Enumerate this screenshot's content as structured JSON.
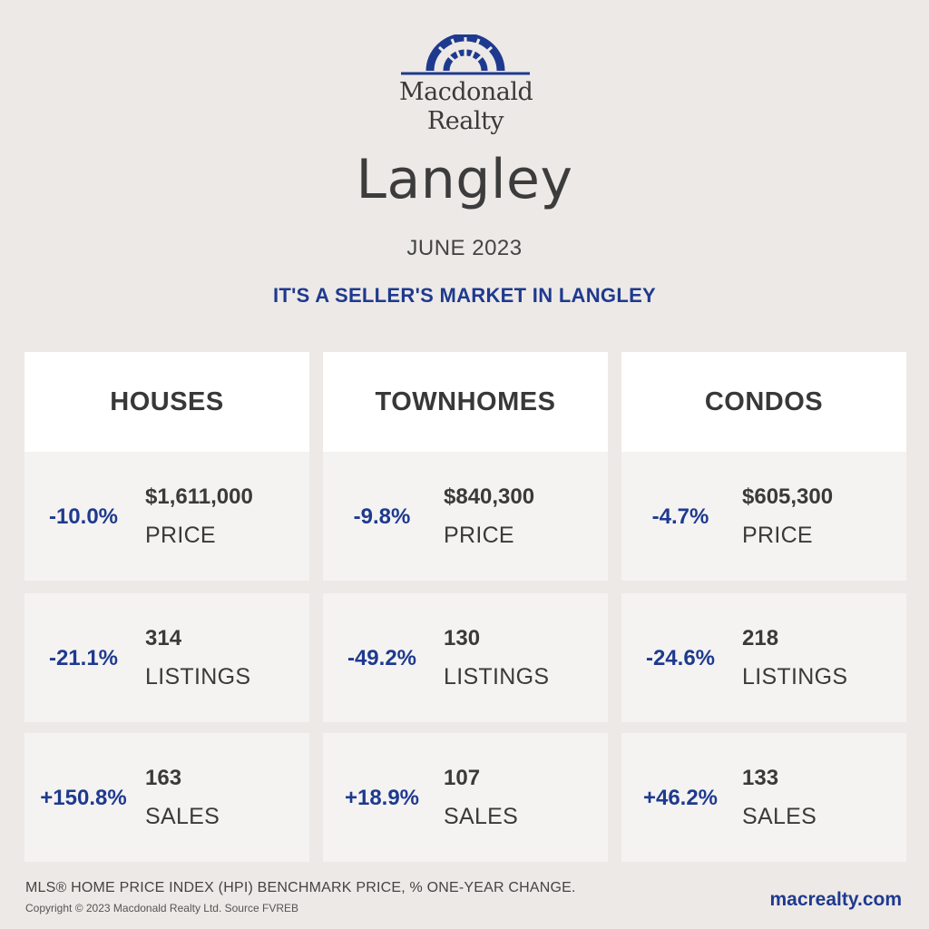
{
  "brand": {
    "line1": "Macdonald",
    "line2": "Realty",
    "logo_icon": "sunburst-arch-logo",
    "color": "#1e3a8f"
  },
  "city": "Langley",
  "month": "JUNE 2023",
  "tagline": "IT'S A SELLER'S MARKET IN LANGLEY",
  "columns": [
    {
      "title": "HOUSES",
      "rows": [
        {
          "pct": "-10.0%",
          "value": "$1,611,000",
          "label": "PRICE"
        },
        {
          "pct": "-21.1%",
          "value": "314",
          "label": "LISTINGS"
        },
        {
          "pct": "+150.8%",
          "value": "163",
          "label": "SALES"
        }
      ]
    },
    {
      "title": "TOWNHOMES",
      "rows": [
        {
          "pct": "-9.8%",
          "value": "$840,300",
          "label": "PRICE"
        },
        {
          "pct": "-49.2%",
          "value": "130",
          "label": "LISTINGS"
        },
        {
          "pct": "+18.9%",
          "value": "107",
          "label": "SALES"
        }
      ]
    },
    {
      "title": "CONDOS",
      "rows": [
        {
          "pct": "-4.7%",
          "value": "$605,300",
          "label": "PRICE"
        },
        {
          "pct": "-24.6%",
          "value": "218",
          "label": "LISTINGS"
        },
        {
          "pct": "+46.2%",
          "value": "133",
          "label": "SALES"
        }
      ]
    }
  ],
  "footer": {
    "note": "MLS® HOME PRICE INDEX (HPI) BENCHMARK PRICE, % ONE-YEAR CHANGE.",
    "copyright": "Copyright © 2023 Macdonald Realty Ltd. Source FVREB",
    "website": "macrealty.com"
  }
}
